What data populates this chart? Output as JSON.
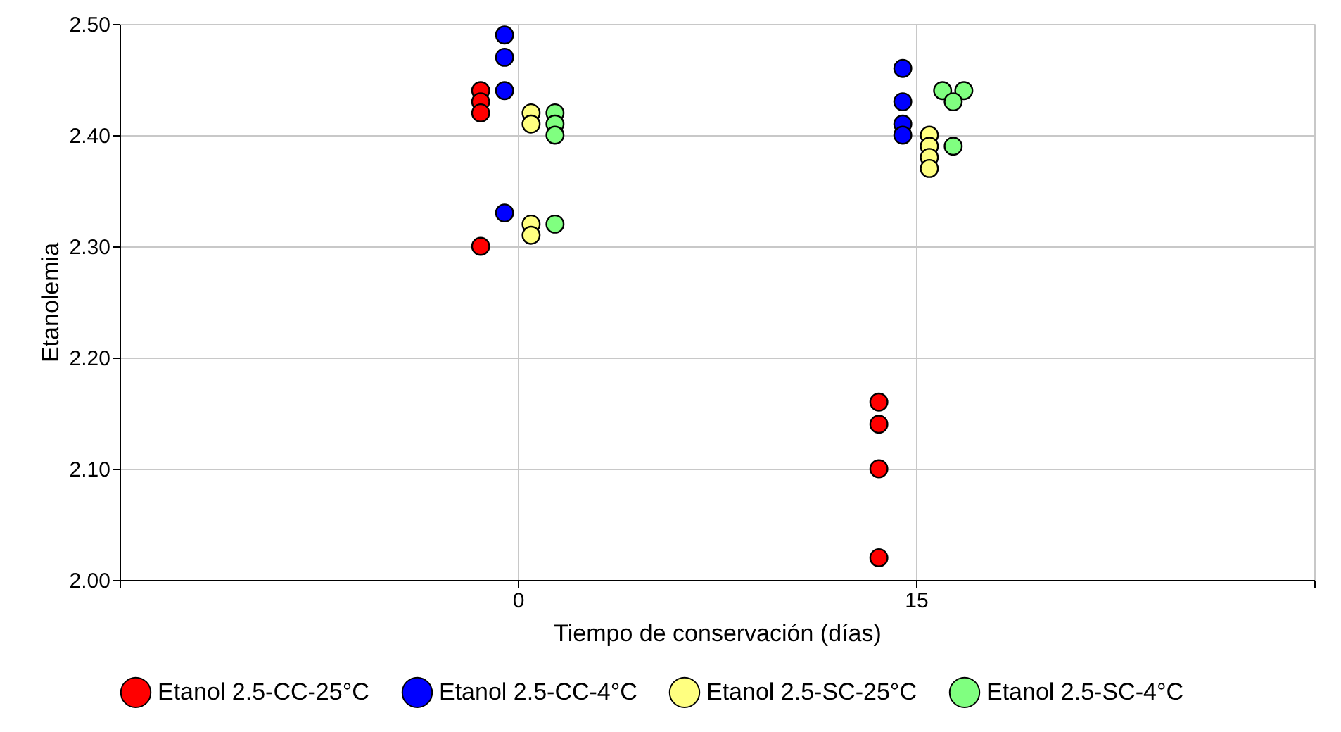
{
  "chart_data": {
    "type": "scatter",
    "xlabel": "Tiempo de conservación (días)",
    "ylabel": "Etanolemia",
    "xlim": [
      -15,
      30
    ],
    "xticks": [
      {
        "value": -15,
        "label": null
      },
      0,
      15,
      {
        "value": 30,
        "label": null
      }
    ],
    "ylim": [
      2.0,
      2.5
    ],
    "yticks": [
      {
        "value": 2.0,
        "label": "2.00"
      },
      {
        "value": 2.1,
        "label": "2.10"
      },
      {
        "value": 2.2,
        "label": "2.20"
      },
      {
        "value": 2.3,
        "label": "2.30"
      },
      {
        "value": 2.4,
        "label": "2.40"
      },
      {
        "value": 2.5,
        "label": "2.50"
      }
    ],
    "grid": true,
    "legend": "bottom",
    "marker": "circle",
    "series": [
      {
        "name": "Etanol 2.5-CC-25°C",
        "color": "#ff0000",
        "x": [
          -1.4,
          -1.4,
          -1.4,
          -1.4,
          13.6,
          13.6,
          13.6,
          13.6
        ],
        "values": [
          2.44,
          2.43,
          2.42,
          2.3,
          2.16,
          2.14,
          2.1,
          2.02
        ]
      },
      {
        "name": "Etanol 2.5-CC-4°C",
        "color": "#0000ff",
        "x": [
          -0.5,
          -0.5,
          -0.5,
          -0.5,
          14.5,
          14.5,
          14.5,
          14.5
        ],
        "values": [
          2.49,
          2.47,
          2.44,
          2.33,
          2.46,
          2.43,
          2.41,
          2.4
        ]
      },
      {
        "name": "Etanol 2.5-SC-25°C",
        "color": "#ffff80",
        "x": [
          0.5,
          0.5,
          0.5,
          0.5,
          15.5,
          15.5,
          15.5,
          15.5
        ],
        "values": [
          2.42,
          2.41,
          2.32,
          2.31,
          2.4,
          2.39,
          2.38,
          2.37
        ]
      },
      {
        "name": "Etanol 2.5-SC-4°C",
        "color": "#80ff80",
        "x": [
          1.4,
          1.4,
          1.4,
          1.4,
          16.0,
          16.8,
          16.4,
          16.4
        ],
        "values": [
          2.42,
          2.41,
          2.4,
          2.32,
          2.44,
          2.44,
          2.43,
          2.39
        ]
      }
    ]
  }
}
